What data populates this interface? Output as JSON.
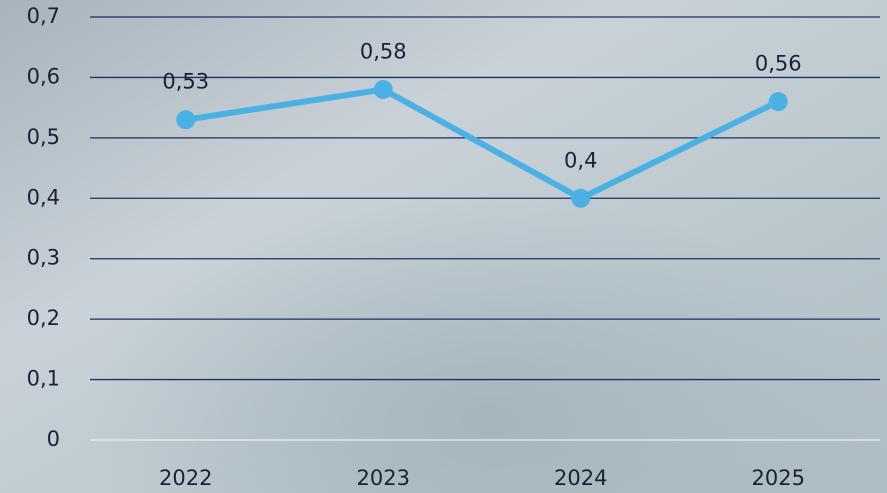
{
  "chart_data": {
    "type": "line",
    "categories": [
      "2022",
      "2023",
      "2024",
      "2025"
    ],
    "values": [
      0.53,
      0.58,
      0.4,
      0.56
    ],
    "value_labels": [
      "0,53",
      "0,58",
      "0,4",
      "0,56"
    ],
    "color": "#4bb0e3",
    "ylim": [
      0,
      0.7
    ],
    "yticks": [
      0,
      {
        "value": 0.1,
        "label": "0,1"
      },
      {
        "value": 0.2,
        "label": "0,2"
      },
      {
        "value": 0.3,
        "label": "0,3"
      },
      {
        "value": 0.4,
        "label": "0,4"
      },
      {
        "value": 0.5,
        "label": "0,5"
      },
      {
        "value": 0.6,
        "label": "0,6"
      },
      {
        "value": 0.7,
        "label": "0,7"
      }
    ],
    "grid": true
  }
}
